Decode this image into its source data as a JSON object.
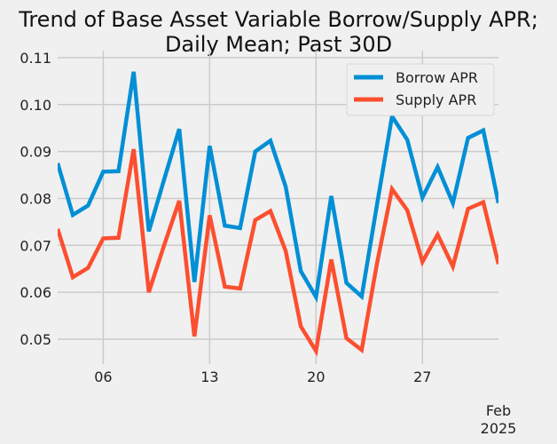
{
  "chart_data": {
    "type": "line",
    "title": [
      "Trend of Base Asset Variable Borrow/Supply APR;",
      "Daily Mean; Past 30D"
    ],
    "xlabel": "",
    "ylabel": "",
    "x": [
      "2025-01-03",
      "2025-01-04",
      "2025-01-05",
      "2025-01-06",
      "2025-01-07",
      "2025-01-08",
      "2025-01-09",
      "2025-01-10",
      "2025-01-11",
      "2025-01-12",
      "2025-01-13",
      "2025-01-14",
      "2025-01-15",
      "2025-01-16",
      "2025-01-17",
      "2025-01-18",
      "2025-01-19",
      "2025-01-20",
      "2025-01-21",
      "2025-01-22",
      "2025-01-23",
      "2025-01-24",
      "2025-01-25",
      "2025-01-26",
      "2025-01-27",
      "2025-01-28",
      "2025-01-29",
      "2025-01-30",
      "2025-01-31",
      "2025-02-01"
    ],
    "series": [
      {
        "name": "Borrow APR",
        "color": "#008fd5",
        "values": [
          0.0875,
          0.0765,
          0.0785,
          0.0857,
          0.0858,
          0.107,
          0.073,
          0.084,
          0.0948,
          0.0622,
          0.0912,
          0.0742,
          0.0737,
          0.09,
          0.0923,
          0.0825,
          0.0645,
          0.059,
          0.0805,
          0.062,
          0.0591,
          0.0785,
          0.0975,
          0.0925,
          0.0802,
          0.0867,
          0.079,
          0.0929,
          0.0945,
          0.079
        ]
      },
      {
        "name": "Supply APR",
        "color": "#fc4f30",
        "values": [
          0.0735,
          0.0632,
          0.0652,
          0.0715,
          0.0716,
          0.0905,
          0.06,
          0.07,
          0.0795,
          0.0506,
          0.0764,
          0.0612,
          0.0608,
          0.0754,
          0.0773,
          0.0688,
          0.0527,
          0.0475,
          0.067,
          0.0502,
          0.0477,
          0.066,
          0.082,
          0.0775,
          0.0665,
          0.0723,
          0.0655,
          0.0778,
          0.0792,
          0.066
        ]
      }
    ],
    "ylim": [
      0.0447,
      0.1115
    ],
    "yticks": [
      "0.05",
      "0.06",
      "0.07",
      "0.08",
      "0.09",
      "0.10",
      "0.11"
    ],
    "xticks": [
      {
        "day": 6,
        "label": "06"
      },
      {
        "day": 13,
        "label": "13"
      },
      {
        "day": 20,
        "label": "20"
      },
      {
        "day": 27,
        "label": "27"
      }
    ],
    "xtick_secondary": {
      "line1": "Feb",
      "line2": "2025"
    },
    "grid": true,
    "legend": "top-right"
  }
}
